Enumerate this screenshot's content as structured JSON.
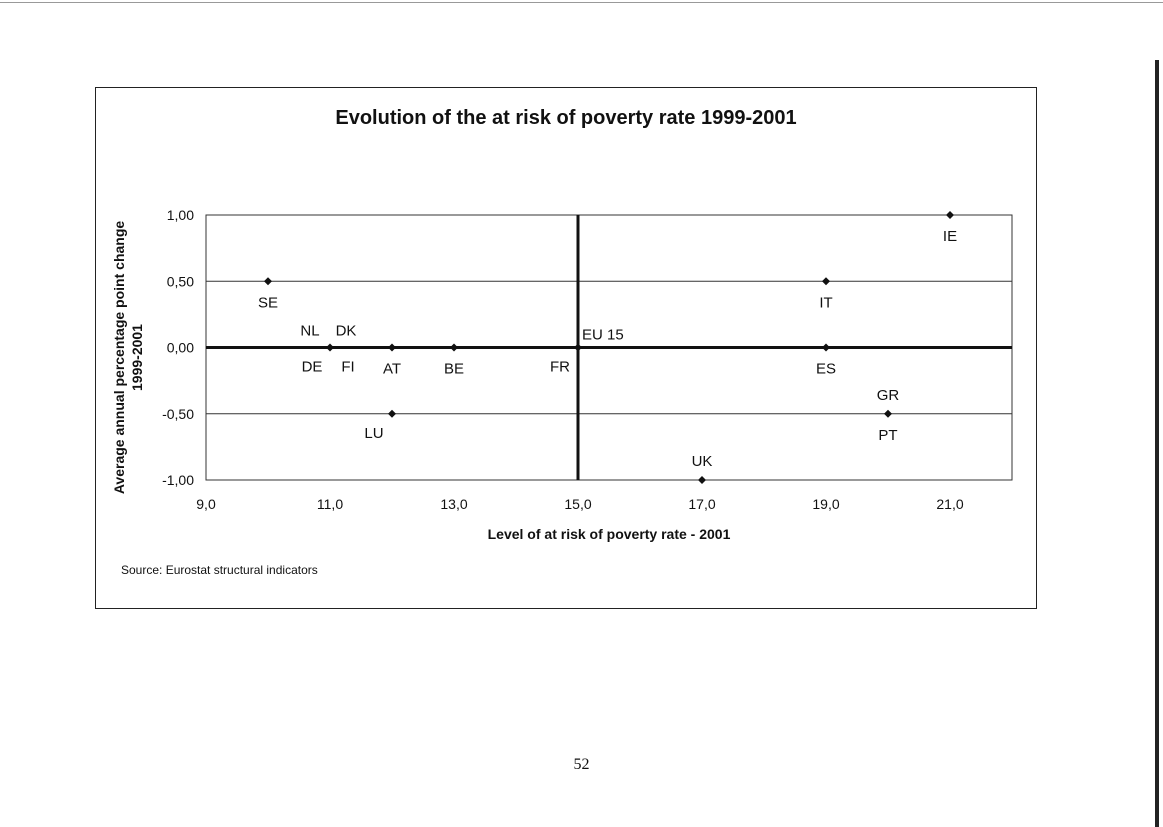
{
  "page": {
    "number": "52"
  },
  "chart_data": {
    "type": "scatter",
    "title": "Evolution of the at risk of poverty rate 1999-2001",
    "xlabel": "Level of at risk of poverty rate - 2001",
    "ylabel_line1": "Average annual percentage point change",
    "ylabel_line2": "1999-2001",
    "xlim": [
      9,
      22
    ],
    "ylim": [
      -1,
      1
    ],
    "x_ticks": [
      9,
      11,
      13,
      15,
      17,
      19,
      21
    ],
    "x_tick_labels": [
      "9,0",
      "11,0",
      "13,0",
      "15,0",
      "17,0",
      "19,0",
      "21,0"
    ],
    "y_ticks": [
      1,
      0.5,
      0,
      -0.5,
      -1
    ],
    "y_tick_labels": [
      "1,00",
      "0,50",
      "0,00",
      "-0,50",
      "-1,00"
    ],
    "grid": "horizontal",
    "reference_lines": {
      "x": 15,
      "y": 0,
      "label": "EU 15"
    },
    "points": [
      {
        "label": "SE",
        "x": 10,
        "y": 0.5,
        "label_pos": "below"
      },
      {
        "label": "NL",
        "x": 11,
        "y": 0,
        "label_pos": "above-left"
      },
      {
        "label": "DK",
        "x": 11,
        "y": 0,
        "label_pos": "above-right"
      },
      {
        "label": "DE",
        "x": 11,
        "y": 0,
        "label_pos": "below-left"
      },
      {
        "label": "FI",
        "x": 11,
        "y": 0,
        "label_pos": "below-right"
      },
      {
        "label": "AT",
        "x": 12,
        "y": 0,
        "label_pos": "below"
      },
      {
        "label": "BE",
        "x": 13,
        "y": 0,
        "label_pos": "below"
      },
      {
        "label": "FR",
        "x": 15,
        "y": 0,
        "label_pos": "below-left"
      },
      {
        "label": "LU",
        "x": 12,
        "y": -0.5,
        "label_pos": "below-left"
      },
      {
        "label": "UK",
        "x": 17,
        "y": -1,
        "label_pos": "above"
      },
      {
        "label": "IT",
        "x": 19,
        "y": 0.5,
        "label_pos": "below"
      },
      {
        "label": "ES",
        "x": 19,
        "y": 0,
        "label_pos": "below"
      },
      {
        "label": "GR",
        "x": 20,
        "y": -0.5,
        "label_pos": "above"
      },
      {
        "label": "PT",
        "x": 20,
        "y": -0.5,
        "label_pos": "below"
      },
      {
        "label": "IE",
        "x": 21,
        "y": 1,
        "label_pos": "below"
      }
    ]
  },
  "source": "Source: Eurostat structural indicators"
}
